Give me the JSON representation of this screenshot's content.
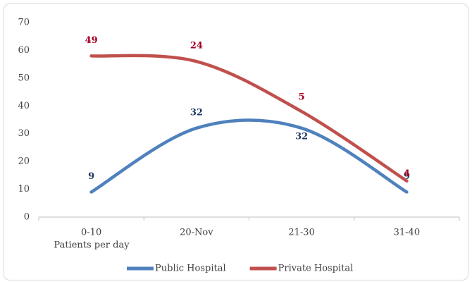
{
  "chart_data": {
    "type": "line",
    "categories": [
      "0-10",
      "20-Nov",
      "21-30",
      "31-40"
    ],
    "x_label": "Patients per day",
    "series": [
      {
        "name": "Public Hospital",
        "color": "#4f81bd",
        "values": [
          9,
          32,
          32,
          9
        ],
        "labels": [
          "9",
          "32",
          "32",
          "9"
        ]
      },
      {
        "name": "Private Hospital",
        "color": "#c0504d",
        "values": [
          58,
          56,
          38,
          13
        ],
        "labels": [
          "49",
          "24",
          "5",
          "4"
        ]
      }
    ],
    "ylim": [
      0,
      70
    ],
    "yticks": [
      0,
      10,
      20,
      30,
      40,
      50,
      60,
      70
    ],
    "grid": false,
    "legend": "bottom"
  }
}
